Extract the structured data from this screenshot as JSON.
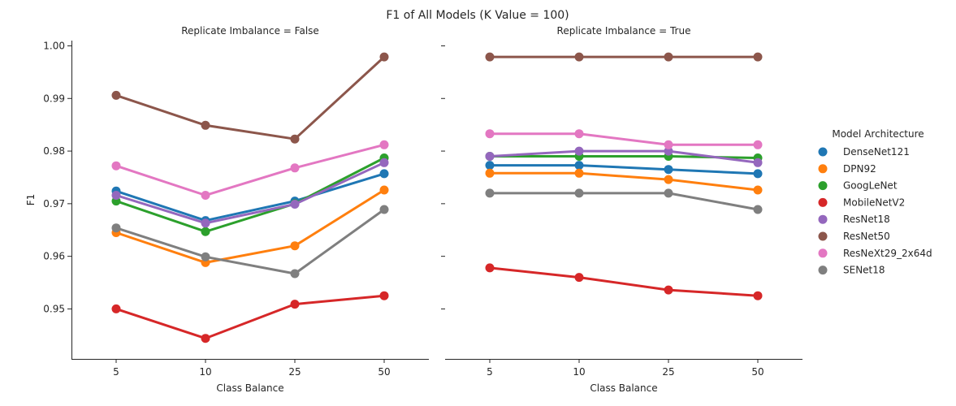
{
  "chart_data": {
    "type": "line",
    "title": "F1 of All Models (K Value = 100)",
    "xlabel": "Class Balance",
    "ylabel": "F1",
    "categories": [
      "5",
      "10",
      "25",
      "50"
    ],
    "ylim": [
      0.9405,
      1.001
    ],
    "yticks": [
      "0.95",
      "0.96",
      "0.97",
      "0.98",
      "0.99",
      "1.00"
    ],
    "grid": false,
    "legend": {
      "title": "Model Architecture",
      "placement": "right"
    },
    "series_meta": [
      {
        "name": "DenseNet121",
        "color": "#1f77b4"
      },
      {
        "name": "DPN92",
        "color": "#ff7f0e"
      },
      {
        "name": "GoogLeNet",
        "color": "#2ca02c"
      },
      {
        "name": "MobileNetV2",
        "color": "#d62728"
      },
      {
        "name": "ResNet18",
        "color": "#9467bd"
      },
      {
        "name": "ResNet50",
        "color": "#8c564b"
      },
      {
        "name": "ResNeXt29_2x64d",
        "color": "#e377c2"
      },
      {
        "name": "SENet18",
        "color": "#7f7f7f"
      }
    ],
    "panels": [
      {
        "title": "Replicate Imbalance = False",
        "series": [
          {
            "name": "DenseNet121",
            "values": [
              0.9724,
              0.9668,
              0.9705,
              0.9757
            ]
          },
          {
            "name": "DPN92",
            "values": [
              0.9645,
              0.9588,
              0.962,
              0.9726
            ]
          },
          {
            "name": "GoogLeNet",
            "values": [
              0.9705,
              0.9647,
              0.97,
              0.9787
            ]
          },
          {
            "name": "MobileNetV2",
            "values": [
              0.95,
              0.9444,
              0.9509,
              0.9525
            ]
          },
          {
            "name": "ResNet18",
            "values": [
              0.9716,
              0.9663,
              0.9699,
              0.9778
            ]
          },
          {
            "name": "ResNet50",
            "values": [
              0.9906,
              0.9849,
              0.9823,
              0.9979
            ]
          },
          {
            "name": "ResNeXt29_2x64d",
            "values": [
              0.9772,
              0.9716,
              0.9768,
              0.9812
            ]
          },
          {
            "name": "SENet18",
            "values": [
              0.9654,
              0.9599,
              0.9567,
              0.9689
            ]
          }
        ]
      },
      {
        "title": "Replicate Imbalance = True",
        "series": [
          {
            "name": "DenseNet121",
            "values": [
              0.9773,
              0.9773,
              0.9765,
              0.9757
            ]
          },
          {
            "name": "DPN92",
            "values": [
              0.9758,
              0.9758,
              0.9746,
              0.9726
            ]
          },
          {
            "name": "GoogLeNet",
            "values": [
              0.979,
              0.979,
              0.979,
              0.9787
            ]
          },
          {
            "name": "MobileNetV2",
            "values": [
              0.9578,
              0.956,
              0.9536,
              0.9525
            ]
          },
          {
            "name": "ResNet18",
            "values": [
              0.979,
              0.98,
              0.98,
              0.9778
            ]
          },
          {
            "name": "ResNet50",
            "values": [
              0.9979,
              0.9979,
              0.9979,
              0.9979
            ]
          },
          {
            "name": "ResNeXt29_2x64d",
            "values": [
              0.9833,
              0.9833,
              0.9812,
              0.9812
            ]
          },
          {
            "name": "SENet18",
            "values": [
              0.972,
              0.972,
              0.972,
              0.9689
            ]
          }
        ]
      }
    ]
  }
}
